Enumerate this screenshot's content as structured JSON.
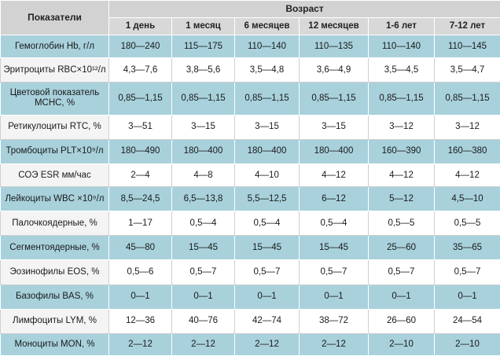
{
  "table": {
    "corner_header": "Показатели",
    "group_header": "Возраст",
    "age_columns": [
      "1 день",
      "1 месяц",
      "6 месяцев",
      "12 месяцев",
      "1-6 лет",
      "7-12 лет"
    ],
    "rows": [
      {
        "name": "Гемоглобин Hb, г/л",
        "values": [
          "180—240",
          "115—175",
          "110—140",
          "110—135",
          "110—140",
          "110—145"
        ]
      },
      {
        "name": "Эритроциты RBC×10¹²/л",
        "values": [
          "4,3—7,6",
          "3,8—5,6",
          "3,5—4,8",
          "3,6—4,9",
          "3,5—4,5",
          "3,5—4,7"
        ]
      },
      {
        "name": "Цветовой показатель MCHC, %",
        "values": [
          "0,85—1,15",
          "0,85—1,15",
          "0,85—1,15",
          "0,85—1,15",
          "0,85—1,15",
          "0,85—1,15"
        ]
      },
      {
        "name": "Ретикулоциты RTC, %",
        "values": [
          "3—51",
          "3—15",
          "3—15",
          "3—15",
          "3—12",
          "3—12"
        ]
      },
      {
        "name": "Тромбоциты PLT×10⁹/л",
        "values": [
          "180—490",
          "180—400",
          "180—400",
          "180—400",
          "160—390",
          "160—380"
        ]
      },
      {
        "name": "СОЭ ESR мм/час",
        "values": [
          "2—4",
          "4—8",
          "4—10",
          "4—12",
          "4—12",
          "4—12"
        ]
      },
      {
        "name": "Лейкоциты WBC ×10⁹/л",
        "values": [
          "8,5—24,5",
          "6,5—13,8",
          "5,5—12,5",
          "6—12",
          "5—12",
          "4,5—10"
        ]
      },
      {
        "name": "Палочкоядерные, %",
        "values": [
          "1—17",
          "0,5—4",
          "0,5—4",
          "0,5—4",
          "0,5—5",
          "0,5—5"
        ]
      },
      {
        "name": "Сегментоядерные, %",
        "values": [
          "45—80",
          "15—45",
          "15—45",
          "15—45",
          "25—60",
          "35—65"
        ]
      },
      {
        "name": "Эозинофилы EOS, %",
        "values": [
          "0,5—6",
          "0,5—7",
          "0,5—7",
          "0,5—7",
          "0,5—7",
          "0,5—7"
        ]
      },
      {
        "name": "Базофилы BAS, %",
        "values": [
          "0—1",
          "0—1",
          "0—1",
          "0—1",
          "0—1",
          "0—1"
        ]
      },
      {
        "name": "Лимфоциты LYM, %",
        "values": [
          "12—36",
          "40—76",
          "42—74",
          "38—72",
          "26—60",
          "24—54"
        ]
      },
      {
        "name": "Моноциты MON, %",
        "values": [
          "2—12",
          "2—12",
          "2—12",
          "2—12",
          "2—10",
          "2—10"
        ]
      }
    ]
  },
  "colors": {
    "header_bg": "#d8d8d8",
    "blue_row_bg": "#a8d1dc",
    "white_row_bg": "#ffffff"
  }
}
